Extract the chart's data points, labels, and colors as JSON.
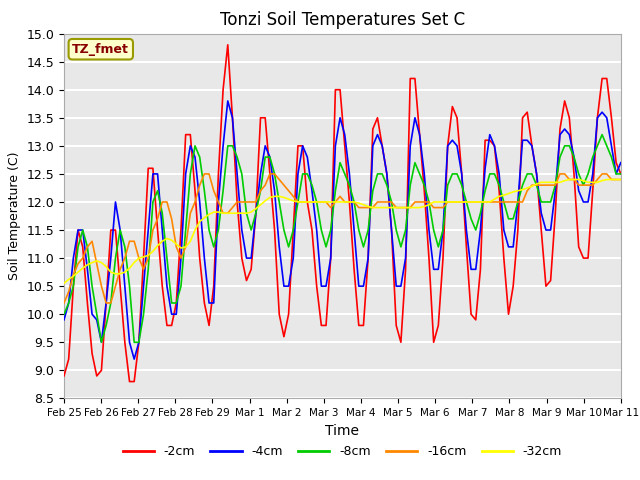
{
  "title": "Tonzi Soil Temperatures Set C",
  "xlabel": "Time",
  "ylabel": "Soil Temperature (C)",
  "ylim": [
    8.5,
    15.0
  ],
  "annotation": "TZ_fmet",
  "annotation_color": "#880000",
  "annotation_bg": "#ffffcc",
  "annotation_border": "#999900",
  "background_color": "#e8e8e8",
  "grid_color": "#ffffff",
  "legend_entries": [
    "-2cm",
    "-4cm",
    "-8cm",
    "-16cm",
    "-32cm"
  ],
  "line_colors": [
    "#ff0000",
    "#0000ff",
    "#00cc00",
    "#ff8800",
    "#ffff00"
  ],
  "x_tick_labels": [
    "Feb 25",
    "Feb 26",
    "Feb 27",
    "Feb 28",
    "Feb 29",
    "Mar 1",
    "Mar 2",
    "Mar 3",
    "Mar 4",
    "Mar 5",
    "Mar 6",
    "Mar 7",
    "Mar 8",
    "Mar 9",
    "Mar 10",
    "Mar 11"
  ],
  "n_days": 15,
  "pts_per_day": 8,
  "series_2cm": [
    8.9,
    9.2,
    10.5,
    11.5,
    11.2,
    10.2,
    9.3,
    8.9,
    9.0,
    10.2,
    11.5,
    11.5,
    10.5,
    9.5,
    8.8,
    8.8,
    9.5,
    11.0,
    12.6,
    12.6,
    11.5,
    10.5,
    9.8,
    9.8,
    10.2,
    11.5,
    13.2,
    13.2,
    12.2,
    11.0,
    10.2,
    9.8,
    10.5,
    12.5,
    14.0,
    14.8,
    13.5,
    12.0,
    11.0,
    10.6,
    10.8,
    11.8,
    13.5,
    13.5,
    12.5,
    11.5,
    10.0,
    9.6,
    10.0,
    11.5,
    13.0,
    13.0,
    12.0,
    11.5,
    10.5,
    9.8,
    9.8,
    11.0,
    14.0,
    14.0,
    13.0,
    12.0,
    10.8,
    9.8,
    9.8,
    11.0,
    13.3,
    13.5,
    13.0,
    12.5,
    11.5,
    9.8,
    9.5,
    10.8,
    14.2,
    14.2,
    13.2,
    12.2,
    11.0,
    9.5,
    9.8,
    11.0,
    13.0,
    13.7,
    13.5,
    12.5,
    11.2,
    10.0,
    9.9,
    10.8,
    13.1,
    13.1,
    13.0,
    12.2,
    11.0,
    10.0,
    10.5,
    11.5,
    13.5,
    13.6,
    13.0,
    12.5,
    11.5,
    10.5,
    10.6,
    11.8,
    13.3,
    13.8,
    13.5,
    12.5,
    11.2,
    11.0,
    11.0,
    12.2,
    13.5,
    14.2,
    14.2,
    13.5,
    12.7,
    12.5
  ],
  "series_4cm": [
    9.9,
    10.2,
    11.0,
    11.5,
    11.5,
    10.8,
    10.0,
    9.9,
    9.5,
    10.2,
    11.0,
    12.0,
    11.5,
    10.5,
    9.5,
    9.2,
    9.5,
    10.5,
    11.5,
    12.5,
    12.5,
    11.5,
    10.5,
    10.0,
    10.0,
    11.0,
    12.5,
    13.0,
    12.8,
    12.0,
    11.0,
    10.2,
    10.2,
    12.0,
    13.0,
    13.8,
    13.5,
    12.5,
    11.5,
    11.0,
    11.0,
    11.8,
    12.5,
    13.0,
    12.8,
    12.2,
    11.2,
    10.5,
    10.5,
    11.0,
    12.5,
    13.0,
    12.8,
    12.2,
    11.5,
    10.5,
    10.5,
    11.0,
    13.0,
    13.5,
    13.2,
    12.5,
    11.5,
    10.5,
    10.5,
    11.0,
    13.0,
    13.2,
    13.0,
    12.5,
    11.5,
    10.5,
    10.5,
    11.0,
    13.0,
    13.5,
    13.2,
    12.5,
    11.5,
    10.8,
    10.8,
    11.5,
    13.0,
    13.1,
    13.0,
    12.5,
    11.5,
    10.8,
    10.8,
    11.5,
    12.6,
    13.2,
    13.0,
    12.5,
    11.5,
    11.2,
    11.2,
    12.0,
    13.1,
    13.1,
    13.0,
    12.5,
    11.8,
    11.5,
    11.5,
    12.2,
    13.2,
    13.3,
    13.2,
    12.8,
    12.2,
    12.0,
    12.0,
    12.5,
    13.5,
    13.6,
    13.5,
    13.0,
    12.5,
    12.7
  ],
  "series_8cm": [
    10.0,
    10.2,
    10.5,
    11.2,
    11.5,
    11.2,
    10.5,
    10.0,
    9.5,
    9.8,
    10.2,
    11.0,
    11.5,
    11.2,
    10.5,
    9.5,
    9.5,
    10.0,
    10.8,
    12.0,
    12.2,
    11.8,
    11.0,
    10.2,
    10.2,
    10.5,
    11.5,
    12.5,
    13.0,
    12.8,
    12.2,
    11.5,
    11.2,
    11.5,
    12.2,
    13.0,
    13.0,
    12.8,
    12.5,
    11.8,
    11.5,
    11.8,
    12.2,
    12.8,
    12.8,
    12.5,
    12.0,
    11.5,
    11.2,
    11.5,
    12.0,
    12.5,
    12.5,
    12.3,
    12.0,
    11.5,
    11.2,
    11.5,
    12.2,
    12.7,
    12.5,
    12.3,
    12.0,
    11.5,
    11.2,
    11.5,
    12.2,
    12.5,
    12.5,
    12.3,
    12.0,
    11.5,
    11.2,
    11.5,
    12.3,
    12.7,
    12.5,
    12.3,
    12.0,
    11.5,
    11.2,
    11.5,
    12.3,
    12.5,
    12.5,
    12.3,
    12.0,
    11.7,
    11.5,
    11.8,
    12.2,
    12.5,
    12.5,
    12.3,
    12.0,
    11.7,
    11.7,
    12.0,
    12.3,
    12.5,
    12.5,
    12.3,
    12.0,
    12.0,
    12.0,
    12.3,
    12.8,
    13.0,
    13.0,
    12.8,
    12.5,
    12.3,
    12.5,
    12.8,
    13.0,
    13.2,
    13.0,
    12.8,
    12.5,
    12.5
  ],
  "series_16cm": [
    10.2,
    10.4,
    10.7,
    10.9,
    11.0,
    11.2,
    11.3,
    10.9,
    10.5,
    10.2,
    10.2,
    10.5,
    10.8,
    11.0,
    11.3,
    11.3,
    11.0,
    10.8,
    11.0,
    11.5,
    11.7,
    12.0,
    12.0,
    11.7,
    11.2,
    11.0,
    11.2,
    11.8,
    12.0,
    12.3,
    12.5,
    12.5,
    12.2,
    12.0,
    11.8,
    11.8,
    11.9,
    12.0,
    12.0,
    12.0,
    12.0,
    12.0,
    12.2,
    12.3,
    12.5,
    12.5,
    12.4,
    12.3,
    12.2,
    12.1,
    12.0,
    12.0,
    12.0,
    12.0,
    12.0,
    12.0,
    12.0,
    11.9,
    12.0,
    12.1,
    12.0,
    12.0,
    12.0,
    11.9,
    11.9,
    11.9,
    11.9,
    12.0,
    12.0,
    12.0,
    12.0,
    11.9,
    11.9,
    11.9,
    11.9,
    12.0,
    12.0,
    12.0,
    12.0,
    11.9,
    11.9,
    11.9,
    12.0,
    12.0,
    12.0,
    12.0,
    12.0,
    12.0,
    12.0,
    12.0,
    12.0,
    12.0,
    12.0,
    12.0,
    12.0,
    12.0,
    12.0,
    12.0,
    12.0,
    12.2,
    12.3,
    12.3,
    12.3,
    12.3,
    12.3,
    12.3,
    12.5,
    12.5,
    12.4,
    12.4,
    12.3,
    12.3,
    12.3,
    12.3,
    12.4,
    12.5,
    12.5,
    12.4,
    12.4,
    12.4
  ],
  "series_32cm": [
    10.55,
    10.62,
    10.68,
    10.75,
    10.82,
    10.88,
    10.92,
    10.95,
    10.92,
    10.85,
    10.75,
    10.72,
    10.72,
    10.75,
    10.82,
    10.92,
    11.0,
    11.02,
    11.05,
    11.12,
    11.22,
    11.3,
    11.35,
    11.32,
    11.25,
    11.18,
    11.2,
    11.3,
    11.5,
    11.65,
    11.72,
    11.78,
    11.82,
    11.82,
    11.8,
    11.8,
    11.8,
    11.8,
    11.8,
    11.8,
    11.82,
    11.88,
    11.95,
    12.02,
    12.08,
    12.1,
    12.1,
    12.08,
    12.05,
    12.02,
    12.0,
    12.0,
    12.0,
    12.0,
    12.0,
    12.0,
    12.0,
    12.0,
    12.0,
    12.0,
    12.0,
    12.0,
    12.0,
    11.98,
    11.95,
    11.92,
    11.9,
    11.9,
    11.9,
    11.9,
    11.9,
    11.9,
    11.9,
    11.9,
    11.9,
    11.9,
    11.9,
    11.92,
    11.95,
    12.0,
    12.0,
    12.0,
    12.0,
    12.0,
    12.0,
    12.0,
    12.0,
    12.0,
    12.0,
    12.0,
    12.0,
    12.0,
    12.05,
    12.1,
    12.12,
    12.15,
    12.18,
    12.2,
    12.22,
    12.25,
    12.28,
    12.32,
    12.35,
    12.35,
    12.35,
    12.35,
    12.35,
    12.38,
    12.4,
    12.4,
    12.4,
    12.38,
    12.35,
    12.35,
    12.35,
    12.38,
    12.4,
    12.4,
    12.4,
    12.4
  ]
}
